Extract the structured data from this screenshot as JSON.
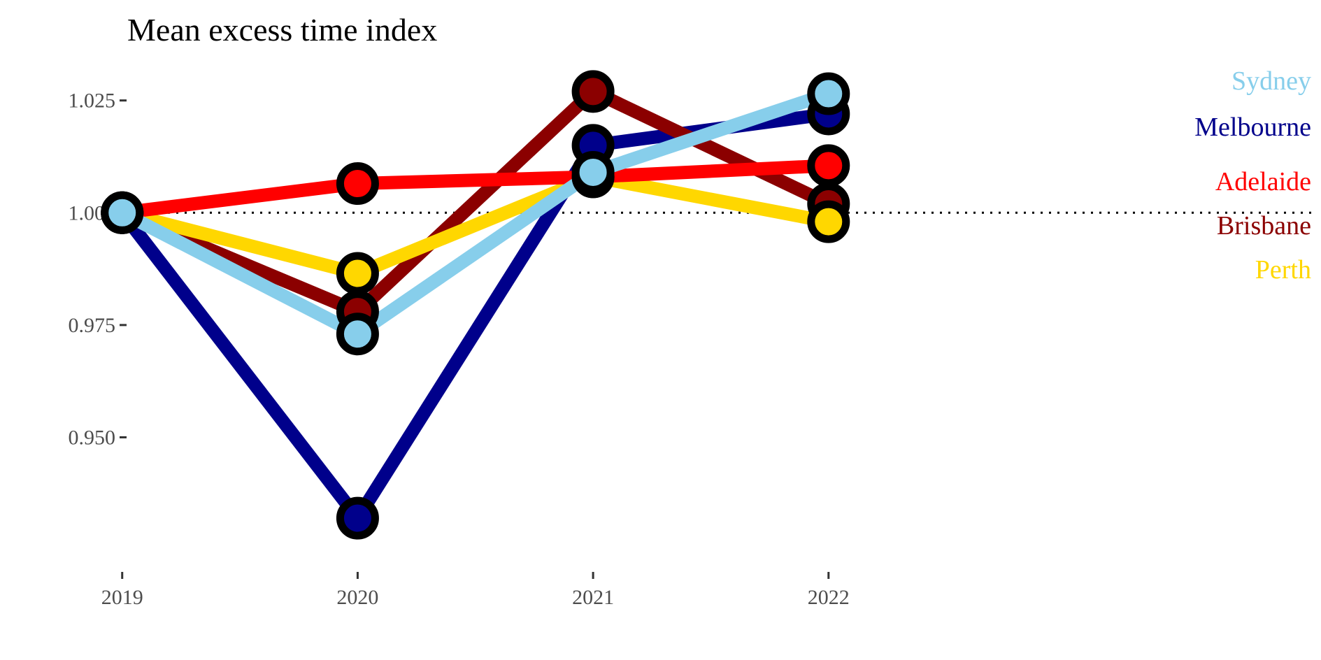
{
  "chart_data": {
    "type": "line",
    "title": "Mean excess time index",
    "xlabel": "",
    "ylabel": "",
    "x": [
      "2019",
      "2020",
      "2021",
      "2022"
    ],
    "xlim": [
      2018.98,
      2024.05
    ],
    "ylim": [
      0.9205,
      1.0318
    ],
    "y_ticks": [
      0.95,
      0.975,
      1.0,
      1.025
    ],
    "y_tick_labels": [
      "0.950",
      "0.975",
      "1.000",
      "1.025"
    ],
    "reference_line": {
      "y": 1.0,
      "style": "dotted"
    },
    "grid": false,
    "legend": "direct labels at right",
    "series": [
      {
        "name": "Melbourne",
        "color": "#00008B",
        "values": [
          1.0,
          0.932,
          1.015,
          1.022
        ]
      },
      {
        "name": "Brisbane",
        "color": "#8B0000",
        "values": [
          1.0,
          0.978,
          1.027,
          1.002
        ]
      },
      {
        "name": "Perth",
        "color": "#FFD700",
        "values": [
          1.0,
          0.9865,
          1.008,
          0.998
        ]
      },
      {
        "name": "Adelaide",
        "color": "#FF0000",
        "values": [
          1.0,
          1.0065,
          1.008,
          1.0105
        ]
      },
      {
        "name": "Sydney",
        "color": "#87CEEB",
        "values": [
          1.0,
          0.973,
          1.009,
          1.0265
        ]
      }
    ],
    "label_order": [
      "Sydney",
      "Melbourne",
      "Adelaide",
      "Brisbane",
      "Perth"
    ]
  }
}
